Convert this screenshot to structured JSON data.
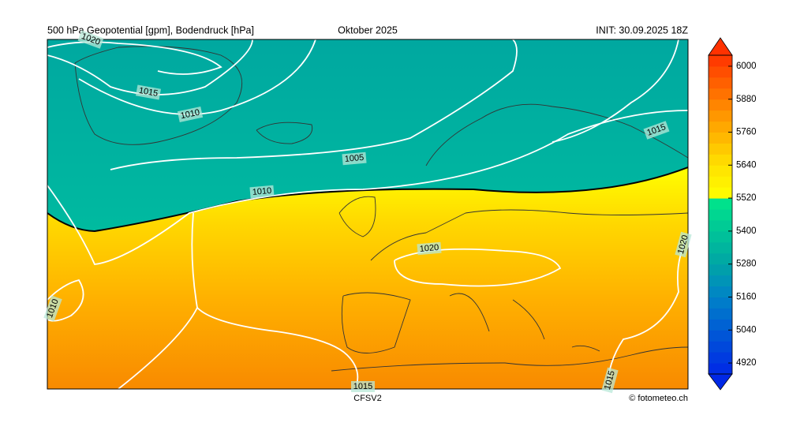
{
  "header": {
    "left": "500 hPa Geopotential [gpm], Bodendruck [hPa]",
    "center": "Oktober 2025",
    "right": "INIT: 30.09.2025 18Z"
  },
  "footer": {
    "model": "CFSV2",
    "credit": "© fotometeo.ch"
  },
  "isobar_labels": [
    "1020",
    "1015",
    "1010",
    "1005",
    "1010",
    "1015",
    "1020",
    "1010",
    "1020",
    "1015",
    "1015"
  ],
  "colorbar": {
    "lim": [
      4880,
      6040
    ],
    "ticks": [
      4920,
      5040,
      5160,
      5280,
      5400,
      5520,
      5640,
      5760,
      5880,
      6000
    ]
  }
}
